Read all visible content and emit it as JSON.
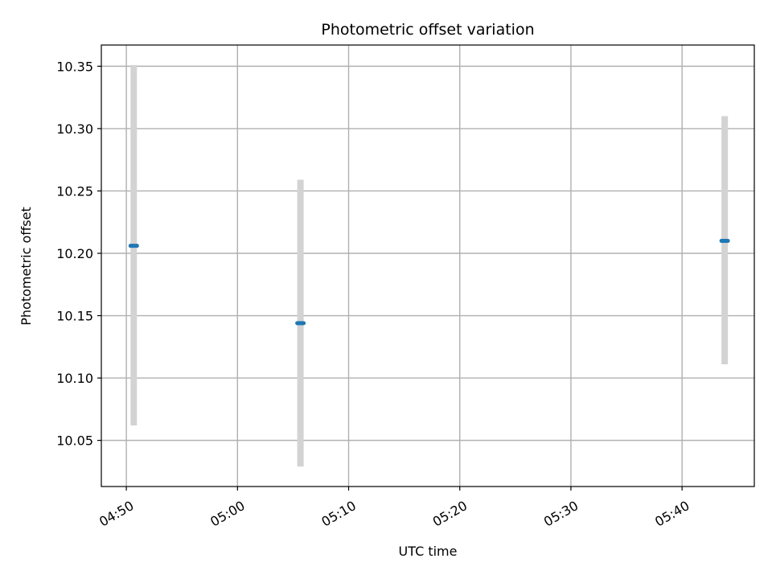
{
  "chart_data": {
    "type": "scatter",
    "title": "Photometric offset variation",
    "xlabel": "UTC time",
    "ylabel": "Photometric offset",
    "x_ticks": [
      "04:50",
      "05:00",
      "05:10",
      "05:20",
      "05:30",
      "05:40"
    ],
    "y_ticks": [
      "10.05",
      "10.10",
      "10.15",
      "10.20",
      "10.25",
      "10.30",
      "10.35"
    ],
    "xlim": [
      "04:47:45",
      "05:46:30"
    ],
    "ylim": [
      10.013,
      10.367
    ],
    "grid": true,
    "points": [
      {
        "x": "04:50:40",
        "y": 10.206,
        "ylow": 10.062,
        "yhigh": 10.351
      },
      {
        "x": "05:05:40",
        "y": 10.144,
        "ylow": 10.029,
        "yhigh": 10.259
      },
      {
        "x": "05:43:50",
        "y": 10.21,
        "ylow": 10.111,
        "yhigh": 10.31
      }
    ],
    "colors": {
      "point": "#1f77b4",
      "errorbar": "#d3d3d3",
      "grid": "#b0b0b0",
      "axes": "#000000"
    }
  }
}
